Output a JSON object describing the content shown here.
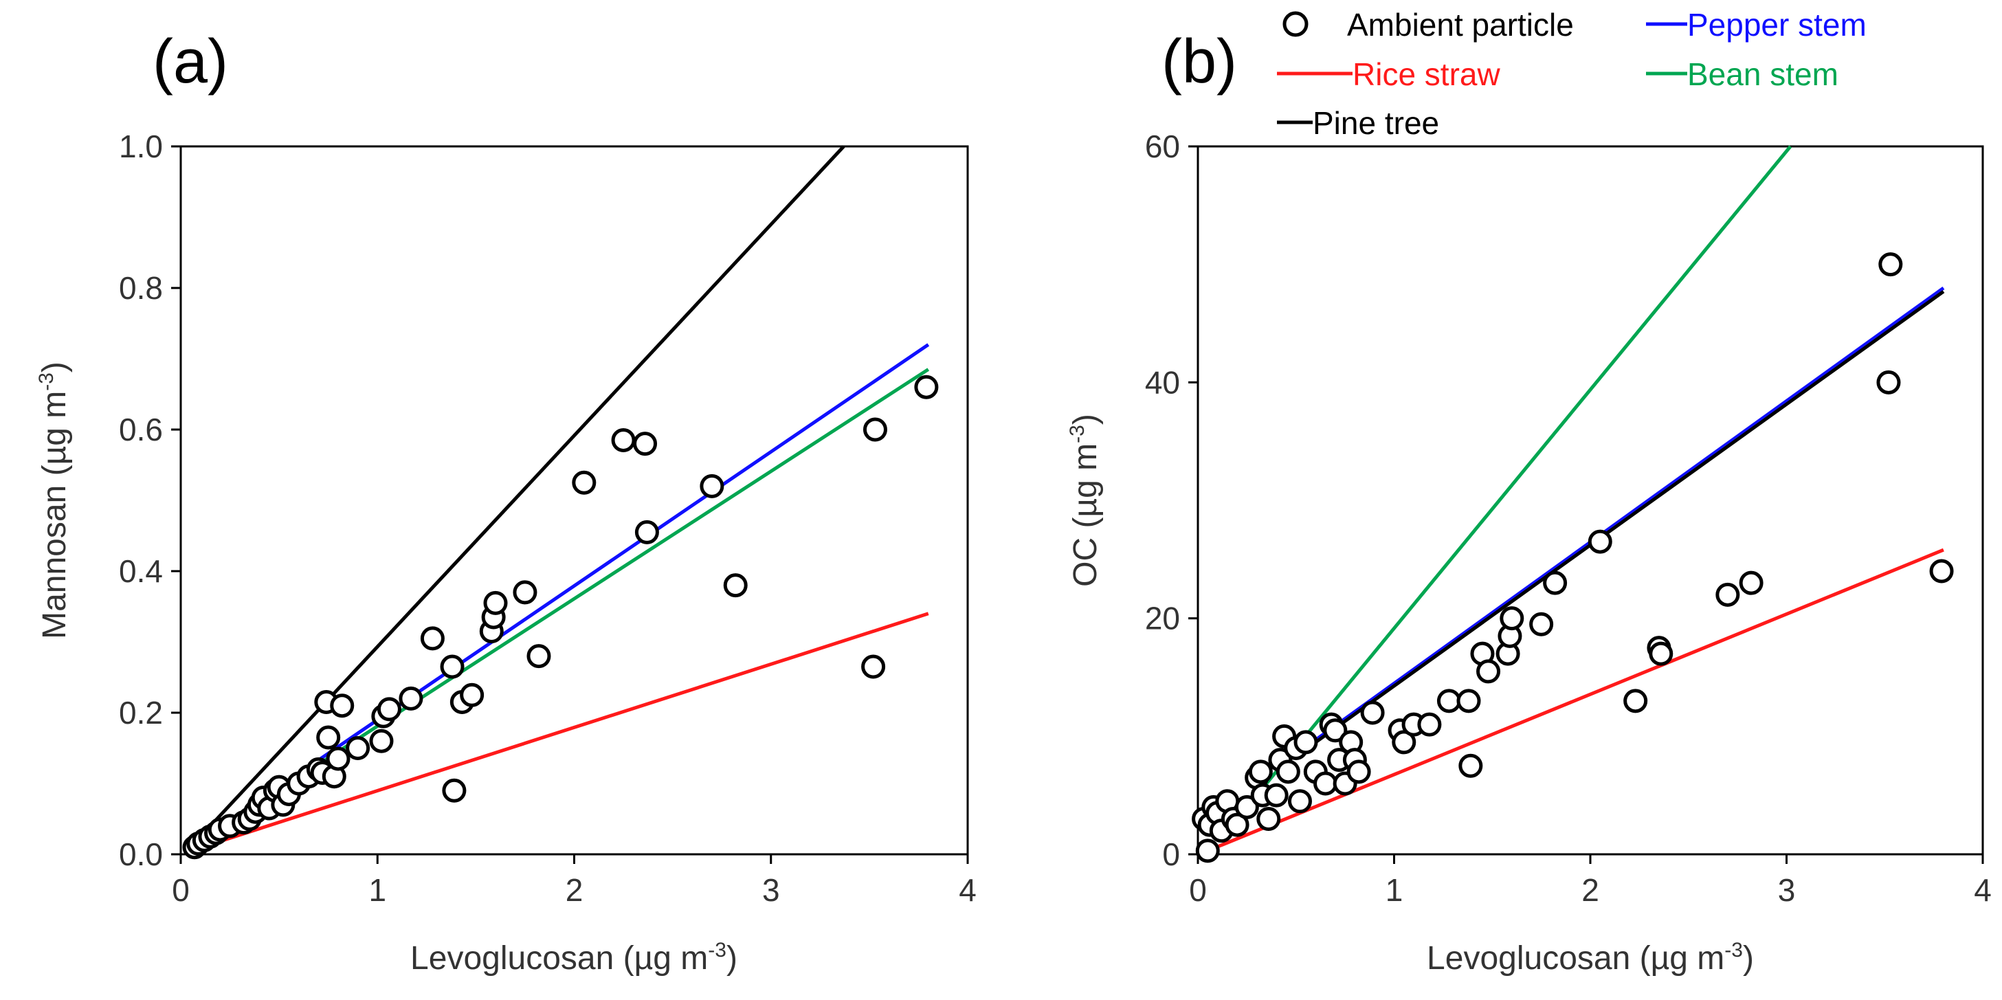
{
  "legend": {
    "items": [
      {
        "name": "Ambient particle",
        "marker": "circle",
        "color": "#000000"
      },
      {
        "name": "Pepper stem",
        "marker": "line",
        "color": "#1010ff"
      },
      {
        "name": "Rice straw",
        "marker": "line",
        "color": "#ff1a1a"
      },
      {
        "name": "Bean stem",
        "marker": "line",
        "color": "#00a651"
      },
      {
        "name": "Pine tree",
        "marker": "line",
        "color": "#000000"
      }
    ]
  },
  "chart_data": [
    {
      "type": "scatter",
      "panel_label": "(a)",
      "xlabel": "Levoglucosan (µg m",
      "xlabel_sup": "-3",
      "xlabel_end": ")",
      "ylabel": "Mannosan (µg m",
      "ylabel_sup": "-3",
      "ylabel_end": ")",
      "xlim": [
        0,
        4
      ],
      "ylim": [
        0,
        1.0
      ],
      "xticks": [
        "0",
        "1",
        "2",
        "3",
        "4"
      ],
      "yticks": [
        "0.0",
        "0.2",
        "0.4",
        "0.6",
        "0.8",
        "1.0"
      ],
      "xtick_values": [
        0,
        1,
        2,
        3,
        4
      ],
      "ytick_values": [
        0,
        0.2,
        0.4,
        0.6,
        0.8,
        1.0
      ],
      "series": [
        {
          "name": "Ambient particle",
          "kind": "points",
          "points": [
            [
              0.07,
              0.01
            ],
            [
              0.09,
              0.015
            ],
            [
              0.12,
              0.02
            ],
            [
              0.15,
              0.025
            ],
            [
              0.18,
              0.03
            ],
            [
              0.2,
              0.035
            ],
            [
              0.25,
              0.04
            ],
            [
              0.32,
              0.045
            ],
            [
              0.35,
              0.05
            ],
            [
              0.38,
              0.06
            ],
            [
              0.4,
              0.07
            ],
            [
              0.42,
              0.08
            ],
            [
              0.45,
              0.065
            ],
            [
              0.48,
              0.09
            ],
            [
              0.5,
              0.095
            ],
            [
              0.52,
              0.07
            ],
            [
              0.55,
              0.085
            ],
            [
              0.6,
              0.1
            ],
            [
              0.65,
              0.11
            ],
            [
              0.7,
              0.12
            ],
            [
              0.72,
              0.115
            ],
            [
              0.74,
              0.215
            ],
            [
              0.75,
              0.165
            ],
            [
              0.78,
              0.11
            ],
            [
              0.8,
              0.135
            ],
            [
              0.82,
              0.21
            ],
            [
              0.9,
              0.15
            ],
            [
              1.02,
              0.16
            ],
            [
              1.03,
              0.195
            ],
            [
              1.06,
              0.205
            ],
            [
              1.17,
              0.22
            ],
            [
              1.28,
              0.305
            ],
            [
              1.38,
              0.265
            ],
            [
              1.39,
              0.09
            ],
            [
              1.43,
              0.215
            ],
            [
              1.48,
              0.225
            ],
            [
              1.58,
              0.315
            ],
            [
              1.59,
              0.335
            ],
            [
              1.6,
              0.355
            ],
            [
              1.75,
              0.37
            ],
            [
              1.82,
              0.28
            ],
            [
              2.05,
              0.525
            ],
            [
              2.25,
              0.585
            ],
            [
              2.36,
              0.58
            ],
            [
              2.37,
              0.455
            ],
            [
              2.7,
              0.52
            ],
            [
              2.82,
              0.38
            ],
            [
              3.52,
              0.265
            ],
            [
              3.53,
              0.6
            ],
            [
              3.79,
              0.66
            ]
          ]
        },
        {
          "name": "Pine tree",
          "kind": "line",
          "x": [
            0.05,
            3.37
          ],
          "y": [
            0.01,
            1.0
          ]
        },
        {
          "name": "Pepper stem",
          "kind": "line",
          "x": [
            0.05,
            3.8
          ],
          "y": [
            0.01,
            0.72
          ]
        },
        {
          "name": "Bean stem",
          "kind": "line",
          "x": [
            0.05,
            3.8
          ],
          "y": [
            0.01,
            0.685
          ]
        },
        {
          "name": "Rice straw",
          "kind": "line",
          "x": [
            0.05,
            3.8
          ],
          "y": [
            0.005,
            0.34
          ]
        }
      ]
    },
    {
      "type": "scatter",
      "panel_label": "(b)",
      "xlabel": "Levoglucosan (µg m",
      "xlabel_sup": "-3",
      "xlabel_end": ")",
      "ylabel": "OC (µg m",
      "ylabel_sup": "-3",
      "ylabel_end": ")",
      "xlim": [
        0,
        4
      ],
      "ylim": [
        0,
        60
      ],
      "xticks": [
        "0",
        "1",
        "2",
        "3",
        "4"
      ],
      "yticks": [
        "0",
        "20",
        "40",
        "60"
      ],
      "xtick_values": [
        0,
        1,
        2,
        3,
        4
      ],
      "ytick_values": [
        0,
        20,
        40,
        60
      ],
      "series": [
        {
          "name": "Ambient particle",
          "kind": "points",
          "points": [
            [
              0.03,
              3
            ],
            [
              0.05,
              0.3
            ],
            [
              0.06,
              2.5
            ],
            [
              0.08,
              4
            ],
            [
              0.1,
              3.5
            ],
            [
              0.12,
              2
            ],
            [
              0.15,
              4.5
            ],
            [
              0.18,
              3
            ],
            [
              0.2,
              2.5
            ],
            [
              0.25,
              4
            ],
            [
              0.3,
              6.5
            ],
            [
              0.32,
              7
            ],
            [
              0.33,
              5
            ],
            [
              0.36,
              3
            ],
            [
              0.4,
              5
            ],
            [
              0.42,
              8
            ],
            [
              0.44,
              10
            ],
            [
              0.46,
              7
            ],
            [
              0.5,
              9
            ],
            [
              0.52,
              4.5
            ],
            [
              0.55,
              9.5
            ],
            [
              0.6,
              7
            ],
            [
              0.65,
              6
            ],
            [
              0.68,
              11
            ],
            [
              0.7,
              10.5
            ],
            [
              0.72,
              8
            ],
            [
              0.75,
              6
            ],
            [
              0.78,
              9.5
            ],
            [
              0.8,
              8
            ],
            [
              0.82,
              7
            ],
            [
              0.89,
              12
            ],
            [
              1.03,
              10.5
            ],
            [
              1.05,
              9.5
            ],
            [
              1.1,
              11
            ],
            [
              1.18,
              11
            ],
            [
              1.28,
              13
            ],
            [
              1.38,
              13
            ],
            [
              1.39,
              7.5
            ],
            [
              1.45,
              17
            ],
            [
              1.48,
              15.5
            ],
            [
              1.58,
              17
            ],
            [
              1.59,
              18.5
            ],
            [
              1.6,
              20
            ],
            [
              1.75,
              19.5
            ],
            [
              1.82,
              23
            ],
            [
              2.05,
              26.5
            ],
            [
              2.23,
              13
            ],
            [
              2.35,
              17.5
            ],
            [
              2.36,
              17
            ],
            [
              2.7,
              22
            ],
            [
              2.82,
              23
            ],
            [
              3.52,
              40
            ],
            [
              3.53,
              50
            ],
            [
              3.79,
              24
            ]
          ]
        },
        {
          "name": "Bean stem",
          "kind": "line",
          "x": [
            0.3,
            3.02
          ],
          "y": [
            5,
            60
          ]
        },
        {
          "name": "Pepper stem",
          "kind": "line",
          "x": [
            0.5,
            3.8
          ],
          "y": [
            8.5,
            48
          ]
        },
        {
          "name": "Pine tree",
          "kind": "line",
          "x": [
            0.5,
            3.8
          ],
          "y": [
            8.3,
            47.7
          ]
        },
        {
          "name": "Rice straw",
          "kind": "line",
          "x": [
            0.05,
            3.8
          ],
          "y": [
            0.3,
            25.8
          ]
        }
      ]
    }
  ]
}
